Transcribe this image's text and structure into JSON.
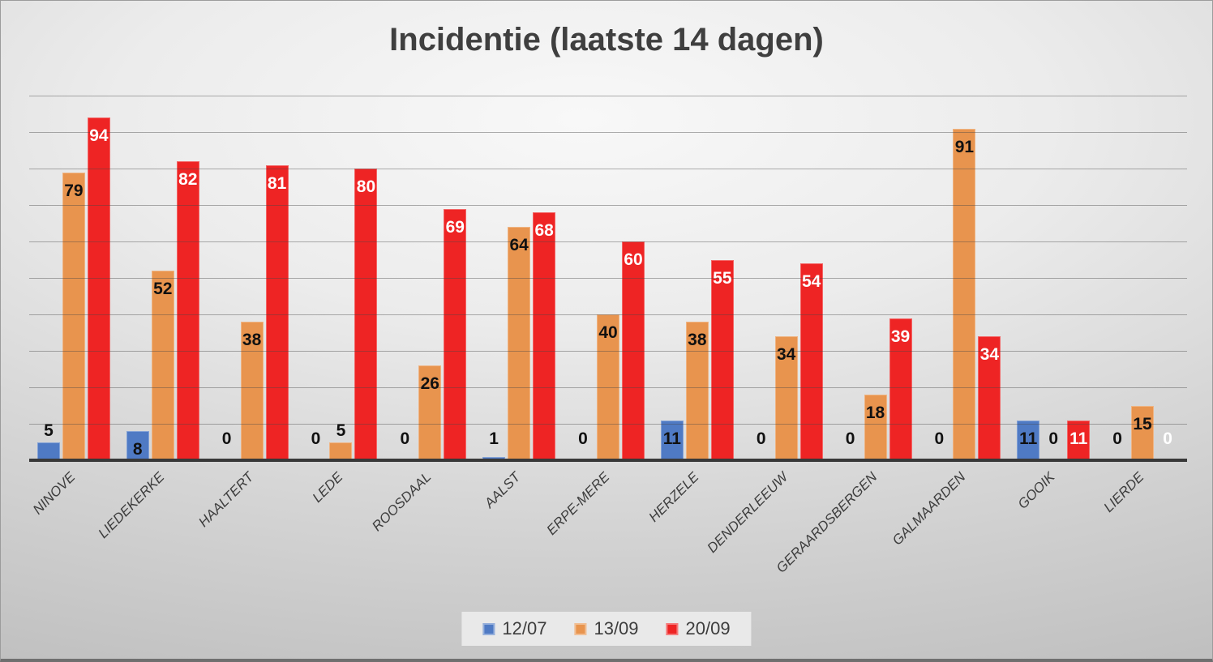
{
  "title": "Incidentie (laatste 14 dagen)",
  "colors": {
    "series_blue": "#4F7AC4",
    "series_orange": "#E8944E",
    "series_red": "#EE2424",
    "title_text": "#3F3F3F",
    "axis_label_text": "#3D3D3D",
    "data_label_dark": "#111111",
    "data_label_light": "#FFFFFF",
    "gridline": "#8E8E8E",
    "axis_line": "#383838",
    "legend_background": "#E9E9E9"
  },
  "legend": {
    "items": [
      {
        "label": "12/07",
        "color": "#4F7AC4"
      },
      {
        "label": "13/09",
        "color": "#E8944E"
      },
      {
        "label": "20/09",
        "color": "#EE2424"
      }
    ]
  },
  "chart_data": {
    "type": "bar",
    "title": "Incidentie (laatste 14 dagen)",
    "xlabel": "",
    "ylabel": "",
    "ylim": [
      0,
      100
    ],
    "gridline_step": 10,
    "grid": "on",
    "data_labels": "on",
    "legend_position": "bottom",
    "categories": [
      "NINOVE",
      "LIEDEKERKE",
      "HAALTERT",
      "LEDE",
      "ROOSDAAL",
      "AALST",
      "ERPE-MERE",
      "HERZELE",
      "DENDERLEEUW",
      "GERAARDSBERGEN",
      "GALMAARDEN",
      "GOOIK",
      "LIERDE"
    ],
    "series": [
      {
        "name": "12/07",
        "color": "#4F7AC4",
        "label_color": "#111111",
        "values": [
          5,
          8,
          0,
          0,
          0,
          1,
          0,
          11,
          0,
          0,
          0,
          11,
          0
        ]
      },
      {
        "name": "13/09",
        "color": "#E8944E",
        "label_color": "#111111",
        "values": [
          79,
          52,
          38,
          5,
          26,
          64,
          40,
          38,
          34,
          18,
          91,
          0,
          15
        ]
      },
      {
        "name": "20/09",
        "color": "#EE2424",
        "label_color": "#FFFFFF",
        "values": [
          94,
          82,
          81,
          80,
          69,
          68,
          60,
          55,
          54,
          39,
          34,
          11,
          0
        ]
      }
    ]
  }
}
